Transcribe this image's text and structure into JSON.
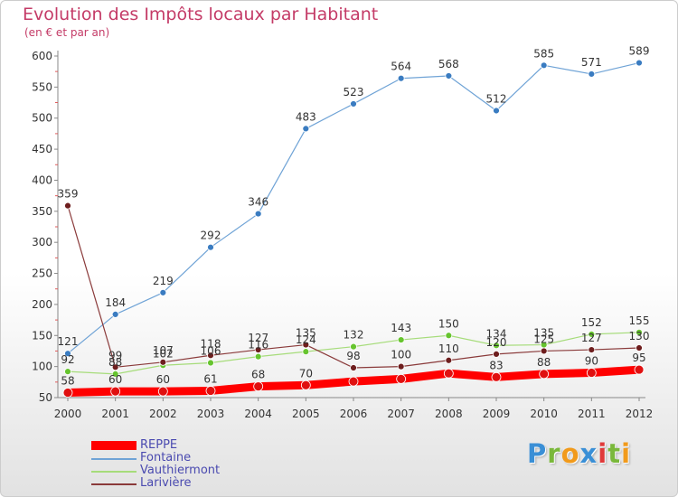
{
  "header": {
    "title": "Evolution des Impôts locaux par Habitant",
    "subtitle": "(en € et par an)"
  },
  "colors": {
    "title": "#c43b67",
    "axis": "#888888",
    "tick_text": "#333333",
    "legend_text": "#4a4ab0"
  },
  "logo": {
    "letters": [
      {
        "char": "P",
        "color": "#3a8fd6"
      },
      {
        "char": "r",
        "color": "#7ab83b"
      },
      {
        "char": "o",
        "color": "#f19a1b"
      },
      {
        "char": "x",
        "color": "#3a8fd6"
      },
      {
        "char": "i",
        "color": "#e03a3a"
      },
      {
        "char": "t",
        "color": "#7ab83b"
      },
      {
        "char": "i",
        "color": "#f19a1b"
      }
    ]
  },
  "chart_data": {
    "type": "line",
    "title": "Evolution des Impôts locaux par Habitant",
    "subtitle": "(en € et par an)",
    "xlabel": "",
    "ylabel": "",
    "ylim": [
      50,
      600
    ],
    "yticks": [
      50,
      100,
      150,
      200,
      250,
      300,
      350,
      400,
      450,
      500,
      550,
      600
    ],
    "grid": false,
    "legend_position": "bottom-left",
    "categories": [
      "2000",
      "2001",
      "2002",
      "2003",
      "2004",
      "2005",
      "2006",
      "2007",
      "2008",
      "2009",
      "2010",
      "2011",
      "2012"
    ],
    "series": [
      {
        "name": "REPPE",
        "color": "#ff0000",
        "point_color": "#e01010",
        "width": 9,
        "values": [
          58,
          60,
          60,
          61,
          68,
          70,
          76,
          80,
          89,
          83,
          88,
          90,
          95
        ],
        "labels": [
          "58",
          "60",
          "60",
          "61",
          "68",
          "70",
          "",
          "",
          "",
          "83",
          "88",
          "90",
          "95"
        ]
      },
      {
        "name": "Fontaine",
        "color": "#6fa3d6",
        "point_color": "#3a7cc1",
        "width": 1.2,
        "values": [
          121,
          184,
          219,
          292,
          346,
          483,
          523,
          564,
          568,
          512,
          585,
          571,
          589
        ],
        "labels": [
          "121",
          "184",
          "219",
          "292",
          "346",
          "483",
          "523",
          "564",
          "568",
          "512",
          "585",
          "571",
          "589"
        ]
      },
      {
        "name": "Vauthiermont",
        "color": "#a6dc7a",
        "point_color": "#66c42e",
        "width": 1.2,
        "values": [
          92,
          88,
          102,
          106,
          116,
          124,
          132,
          143,
          150,
          134,
          135,
          152,
          155
        ],
        "labels": [
          "92",
          "88",
          "102",
          "106",
          "116",
          "124",
          "132",
          "143",
          "150",
          "134",
          "135",
          "152",
          "155"
        ]
      },
      {
        "name": "Larivière",
        "color": "#8a3a3a",
        "point_color": "#6e1e1e",
        "width": 1.2,
        "values": [
          359,
          99,
          107,
          118,
          127,
          135,
          98,
          100,
          110,
          120,
          125,
          127,
          130
        ],
        "labels": [
          "359",
          "99",
          "107",
          "118",
          "127",
          "135",
          "98",
          "100",
          "110",
          "120",
          "125",
          "127",
          "130"
        ]
      }
    ]
  }
}
